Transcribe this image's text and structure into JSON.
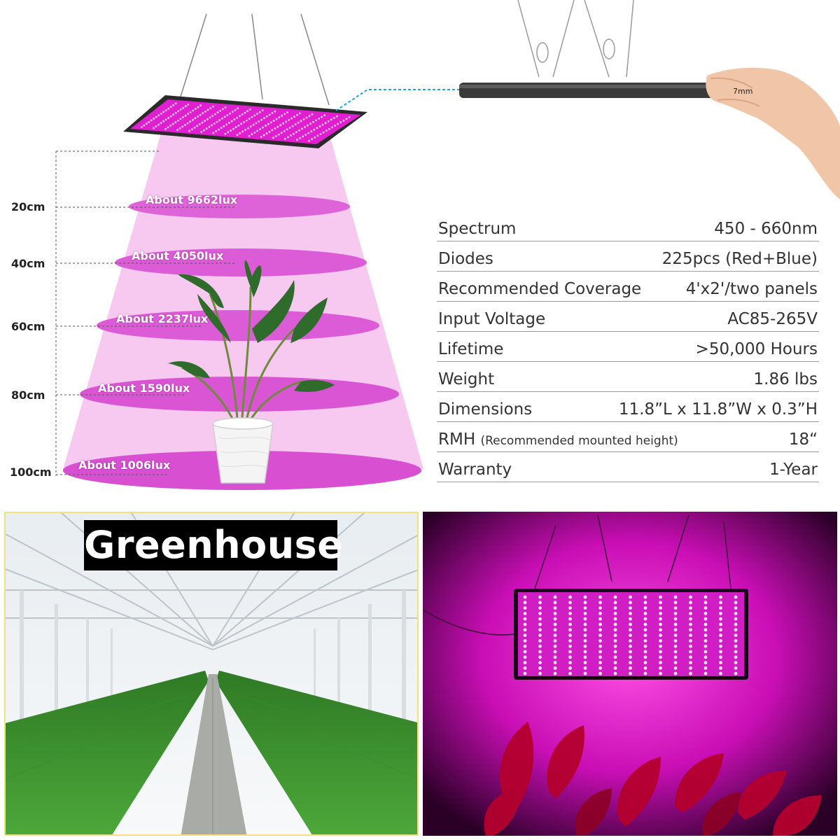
{
  "distances": [
    "20cm",
    "40cm",
    "60cm",
    "80cm",
    "100cm"
  ],
  "lux": [
    "About 9662lux",
    "About 4050lux",
    "About 2237lux",
    "About 1590lux",
    "About 1006lux"
  ],
  "thickness": "7mm",
  "specs": [
    {
      "key": "Spectrum",
      "value": "450 - 660nm"
    },
    {
      "key": "Diodes",
      "value": "225pcs (Red+Blue)"
    },
    {
      "key": "Recommended Coverage",
      "value": "4'x2'/two panels"
    },
    {
      "key": "Input Voltage",
      "value": "AC85-265V"
    },
    {
      "key": "Lifetime",
      "value": ">50,000 Hours"
    },
    {
      "key": "Weight",
      "value": "1.86  lbs"
    },
    {
      "key": "Dimensions",
      "value": "11.8”L  x  11.8”W  x  0.3”H"
    },
    {
      "key": "RMH",
      "key_note": "(Recommended mounted height)",
      "value": "18“"
    },
    {
      "key": "Warranty",
      "value": "1-Year"
    }
  ],
  "greenhouse_label": "Greenhouse",
  "colors": {
    "light_pink": "#f7c9f1",
    "disc_magenta": "#d94fd2",
    "panel_magenta": "#e01fd0",
    "greenhouse_border": "#f3e27a"
  },
  "icons": [
    "led-panel-icon",
    "plant-icon",
    "hand-icon",
    "hanging-wire-icon"
  ]
}
